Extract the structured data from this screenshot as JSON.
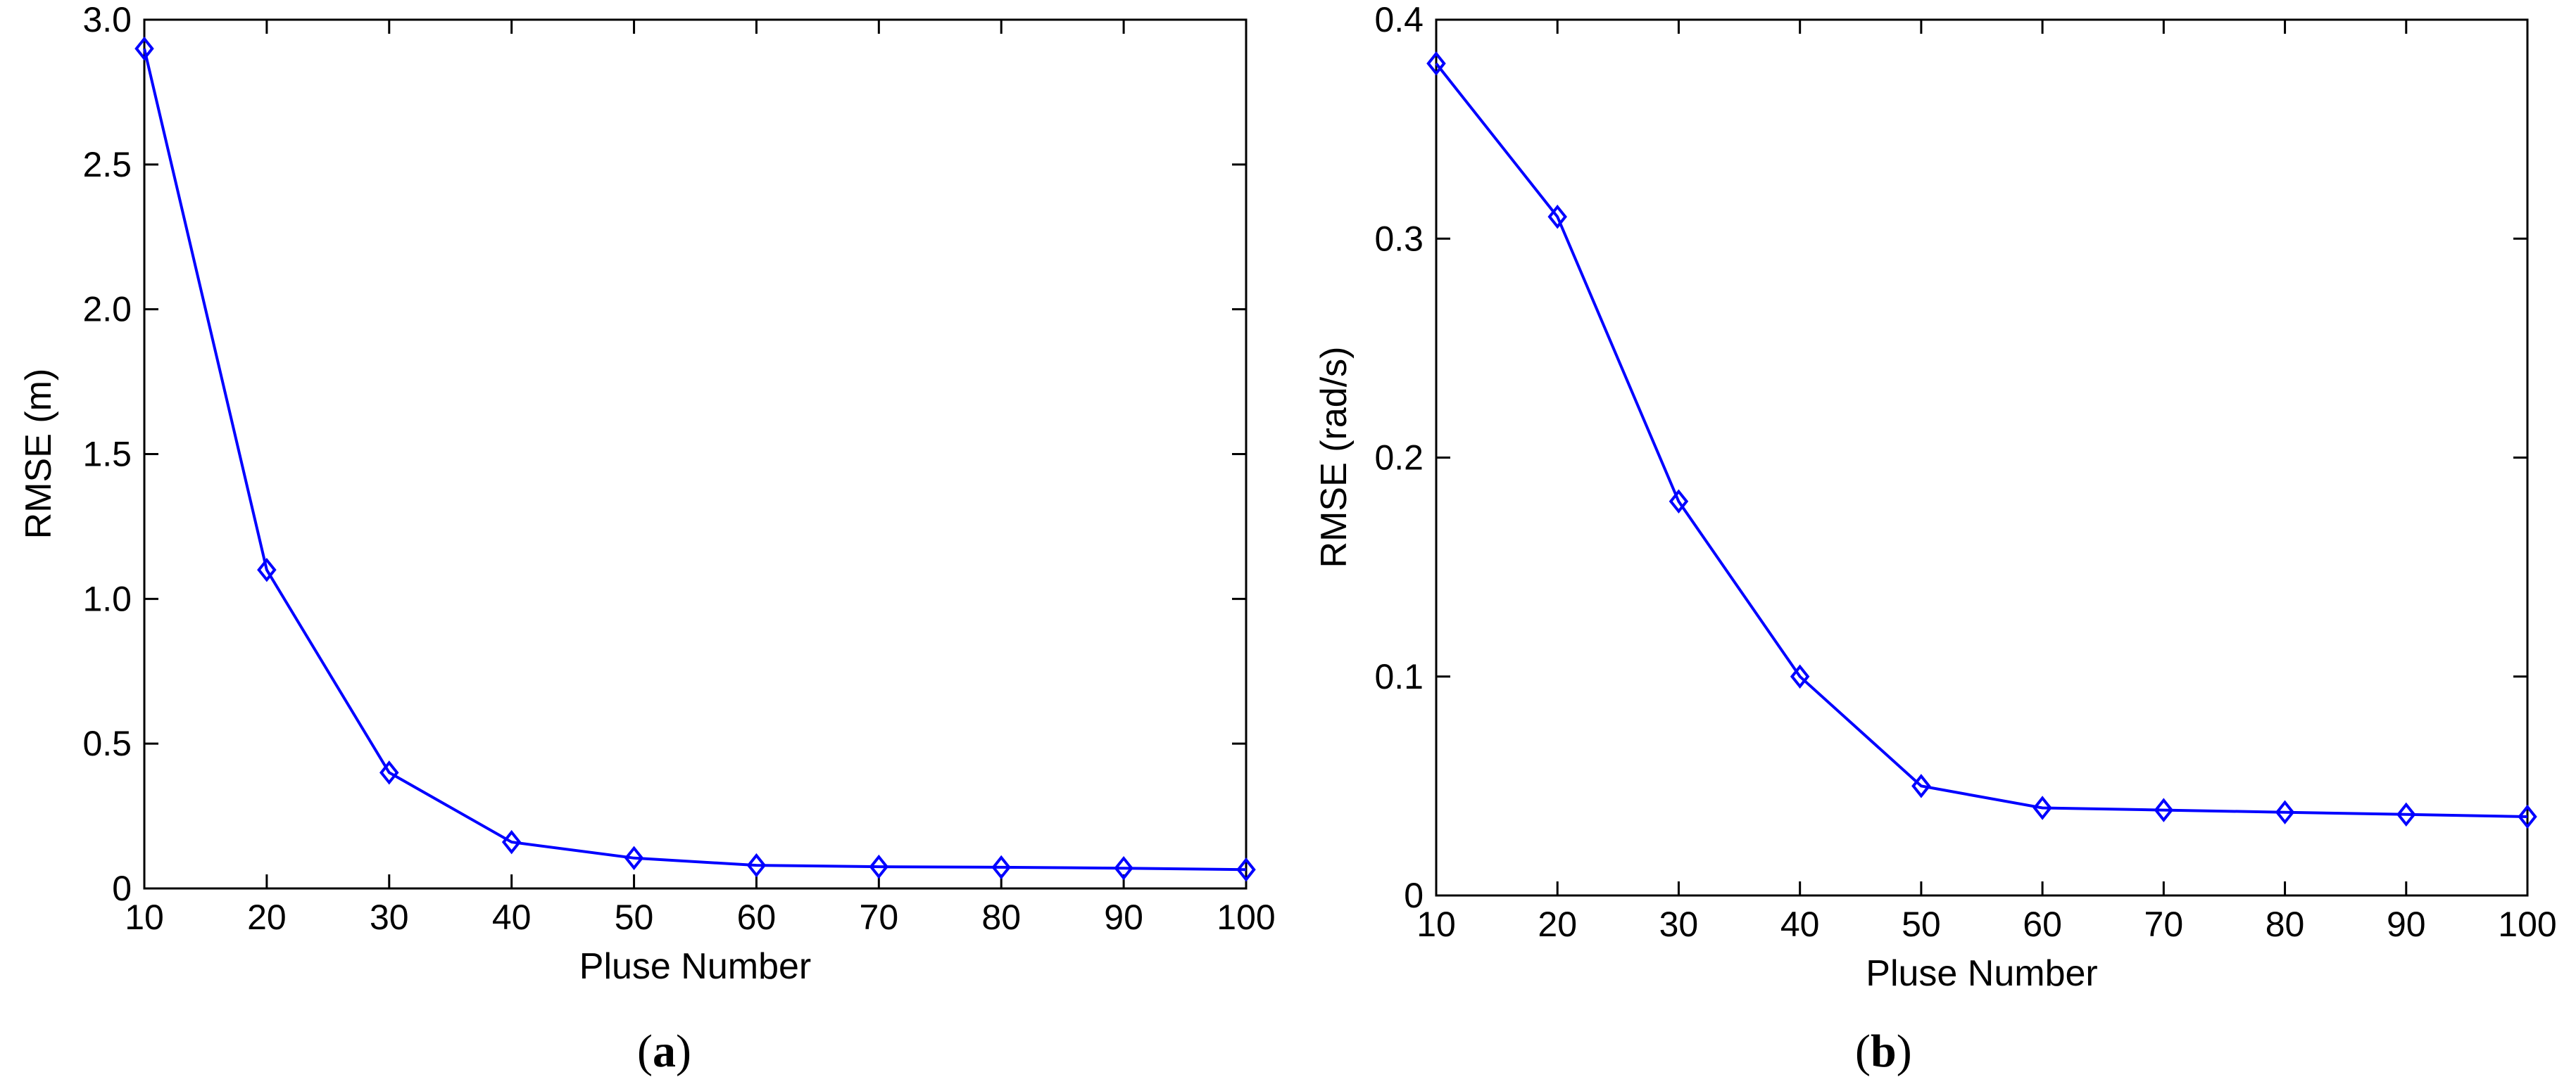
{
  "chart_data": [
    {
      "type": "line",
      "panel": "(a)",
      "panel_letter": "a",
      "title": "",
      "xlabel": "Pluse Number",
      "ylabel": "RMSE (m)",
      "x": [
        10,
        20,
        30,
        40,
        50,
        60,
        70,
        80,
        90,
        100
      ],
      "series": [
        {
          "name": "",
          "values": [
            2.9,
            1.1,
            0.4,
            0.16,
            0.105,
            0.08,
            0.075,
            0.073,
            0.07,
            0.065
          ]
        }
      ],
      "xlim": [
        10,
        100
      ],
      "ylim": [
        0,
        3
      ],
      "xticks": [
        10,
        20,
        30,
        40,
        50,
        60,
        70,
        80,
        90,
        100
      ],
      "yticks": [
        0,
        0.5,
        1.0,
        1.5,
        2.0,
        2.5,
        3.0
      ],
      "ytick_labels": [
        "0",
        "0.5",
        "1.0",
        "1.5",
        "2.0",
        "2.5",
        "3.0"
      ],
      "grid": false,
      "marker": "diamond",
      "color": "#0000ff"
    },
    {
      "type": "line",
      "panel": "(b)",
      "panel_letter": "b",
      "title": "",
      "xlabel": "Pluse Number",
      "ylabel": "RMSE (rad/s)",
      "x": [
        10,
        20,
        30,
        40,
        50,
        60,
        70,
        80,
        90,
        100
      ],
      "series": [
        {
          "name": "",
          "values": [
            0.38,
            0.31,
            0.18,
            0.1,
            0.05,
            0.04,
            0.039,
            0.038,
            0.037,
            0.036
          ]
        }
      ],
      "xlim": [
        10,
        100
      ],
      "ylim": [
        0,
        0.4
      ],
      "xticks": [
        10,
        20,
        30,
        40,
        50,
        60,
        70,
        80,
        90,
        100
      ],
      "yticks": [
        0,
        0.1,
        0.2,
        0.3,
        0.4
      ],
      "ytick_labels": [
        "0",
        "0.1",
        "0.2",
        "0.3",
        "0.4"
      ],
      "grid": false,
      "marker": "diamond",
      "color": "#0000ff"
    }
  ]
}
